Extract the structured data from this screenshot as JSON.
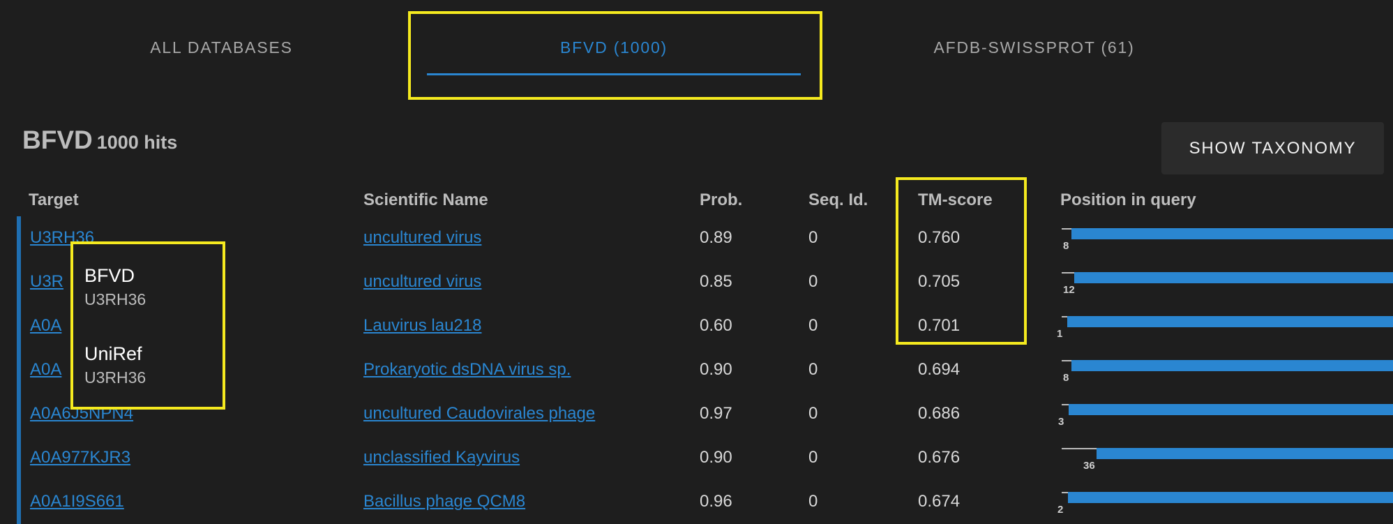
{
  "tabs": [
    {
      "label": "ALL DATABASES"
    },
    {
      "label": "BFVD (1000)"
    },
    {
      "label": "AFDB-SWISSPROT (61)"
    }
  ],
  "result": {
    "title": "BFVD",
    "subtitle": "1000 hits",
    "taxonomy_button": "SHOW TAXONOMY"
  },
  "columns": [
    "Target",
    "Scientific Name",
    "Prob.",
    "Seq. Id.",
    "TM-score",
    "Position in query"
  ],
  "rows": [
    {
      "target": "U3RH36",
      "name": "uncultured virus",
      "prob": "0.89",
      "seqid": "0",
      "tm": "0.760",
      "pos_start": "8"
    },
    {
      "target": "U3R",
      "name": "uncultured virus",
      "prob": "0.85",
      "seqid": "0",
      "tm": "0.705",
      "pos_start": "12"
    },
    {
      "target": "A0A",
      "name": "Lauvirus lau218",
      "prob": "0.60",
      "seqid": "0",
      "tm": "0.701",
      "pos_start": "1"
    },
    {
      "target": "A0A",
      "name": "Prokaryotic dsDNA virus sp.",
      "prob": "0.90",
      "seqid": "0",
      "tm": "0.694",
      "pos_start": "8"
    },
    {
      "target": "A0A6J5NPN4",
      "name": "uncultured Caudovirales phage",
      "prob": "0.97",
      "seqid": "0",
      "tm": "0.686",
      "pos_start": "3"
    },
    {
      "target": "A0A977KJR3",
      "name": "unclassified Kayvirus",
      "prob": "0.90",
      "seqid": "0",
      "tm": "0.676",
      "pos_start": "36"
    },
    {
      "target": "A0A1I9S661",
      "name": "Bacillus phage QCM8",
      "prob": "0.96",
      "seqid": "0",
      "tm": "0.674",
      "pos_start": "2"
    }
  ],
  "popup": {
    "entries": [
      {
        "db": "BFVD",
        "accession": "U3RH36"
      },
      {
        "db": "UniRef",
        "accession": "U3RH36"
      }
    ]
  },
  "colors": {
    "accent": "#2a86d1",
    "highlight": "#f5ea1f",
    "background": "#1e1e1e"
  }
}
